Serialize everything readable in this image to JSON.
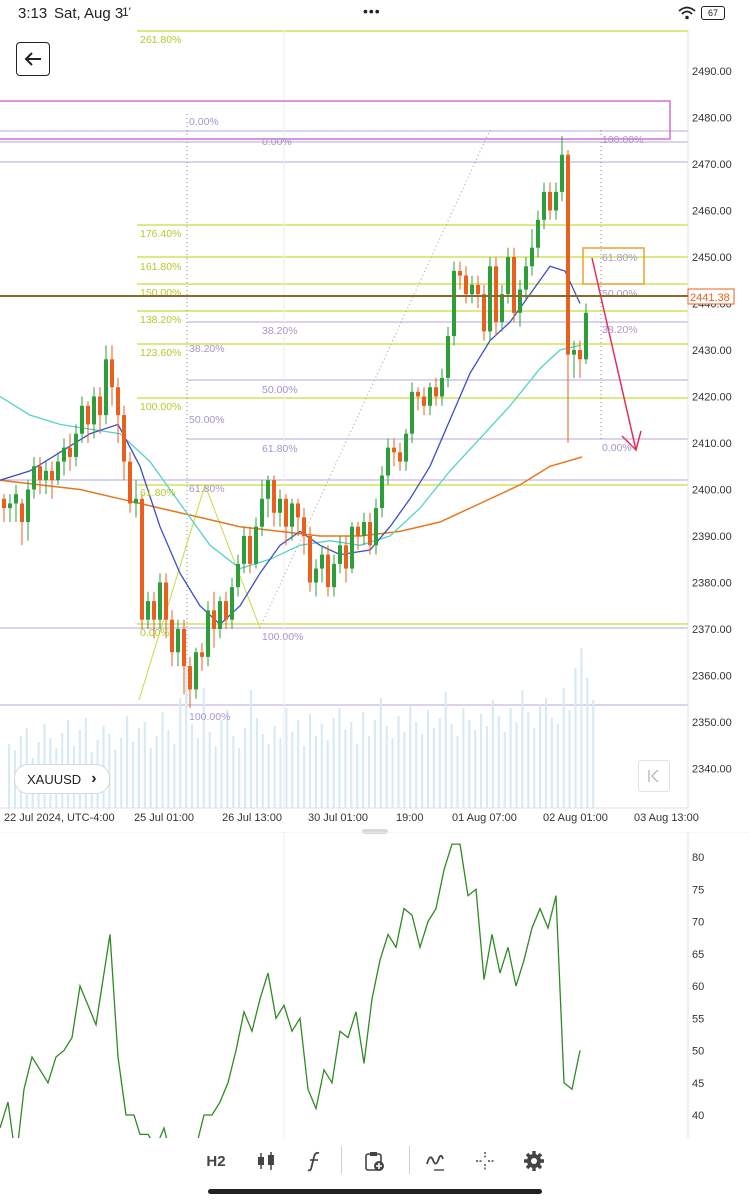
{
  "status_bar": {
    "time": "3:13",
    "date": "Sat, Aug 3",
    "signal": "1'",
    "battery": "67",
    "menu_dots": "•••"
  },
  "symbol": {
    "label": "XAUUSD",
    "chevron": "›"
  },
  "toolbar": {
    "timeframe": "H2"
  },
  "price_axis": {
    "ticks": [
      "2490.00",
      "2480.00",
      "2470.00",
      "2460.00",
      "2450.00",
      "2440.00",
      "2430.00",
      "2420.00",
      "2410.00",
      "2400.00",
      "2390.00",
      "2380.00",
      "2370.00",
      "2360.00",
      "2350.00",
      "2340.00"
    ],
    "current_price": "2441.38",
    "current_price_color": "#e8601c"
  },
  "time_axis": {
    "ticks": [
      "22 Jul 2024, UTC-4:00",
      "25 Jul 01:00",
      "26 Jul 13:00",
      "30 Jul 01:00",
      "19:00",
      "01 Aug 07:00",
      "02 Aug 01:00",
      "03 Aug 13:00"
    ]
  },
  "fib_labels_yellow": [
    "261.80%",
    "176.40%",
    "161.80%",
    "150.00%",
    "138.20%",
    "123.60%",
    "100.00%",
    "61.80%",
    "0.00%"
  ],
  "fib_labels_purple": [
    "0.00%",
    "38.20%",
    "50.00%",
    "61.80%",
    "100.00%",
    "0.00%",
    "38.20%",
    "50.00%",
    "61.80%",
    "100.00%",
    "100.00%",
    "61.80%",
    "50.00%",
    "38.20%",
    "0.00%"
  ],
  "oscillator_axis": {
    "ticks": [
      "80",
      "75",
      "70",
      "65",
      "60",
      "55",
      "50",
      "45",
      "40"
    ]
  },
  "colors": {
    "bull": "#2e9e3b",
    "bear": "#e8601c",
    "fib_yellow": "#c8dc3c",
    "fib_purple": "#b9a3de",
    "ma_fast": "#3b4ec7",
    "ma_mid": "#55d2c8",
    "ma_slow": "#e8761c",
    "oscillator": "#2e8b22"
  },
  "icons": [
    "back-arrow-icon",
    "chevron-right-icon",
    "jump-to-end-icon",
    "candlestick-icon",
    "indicator-f-icon",
    "template-add-icon",
    "draw-icon",
    "crosshair-icon",
    "settings-gear-icon",
    "wifi-icon",
    "battery-icon"
  ]
}
